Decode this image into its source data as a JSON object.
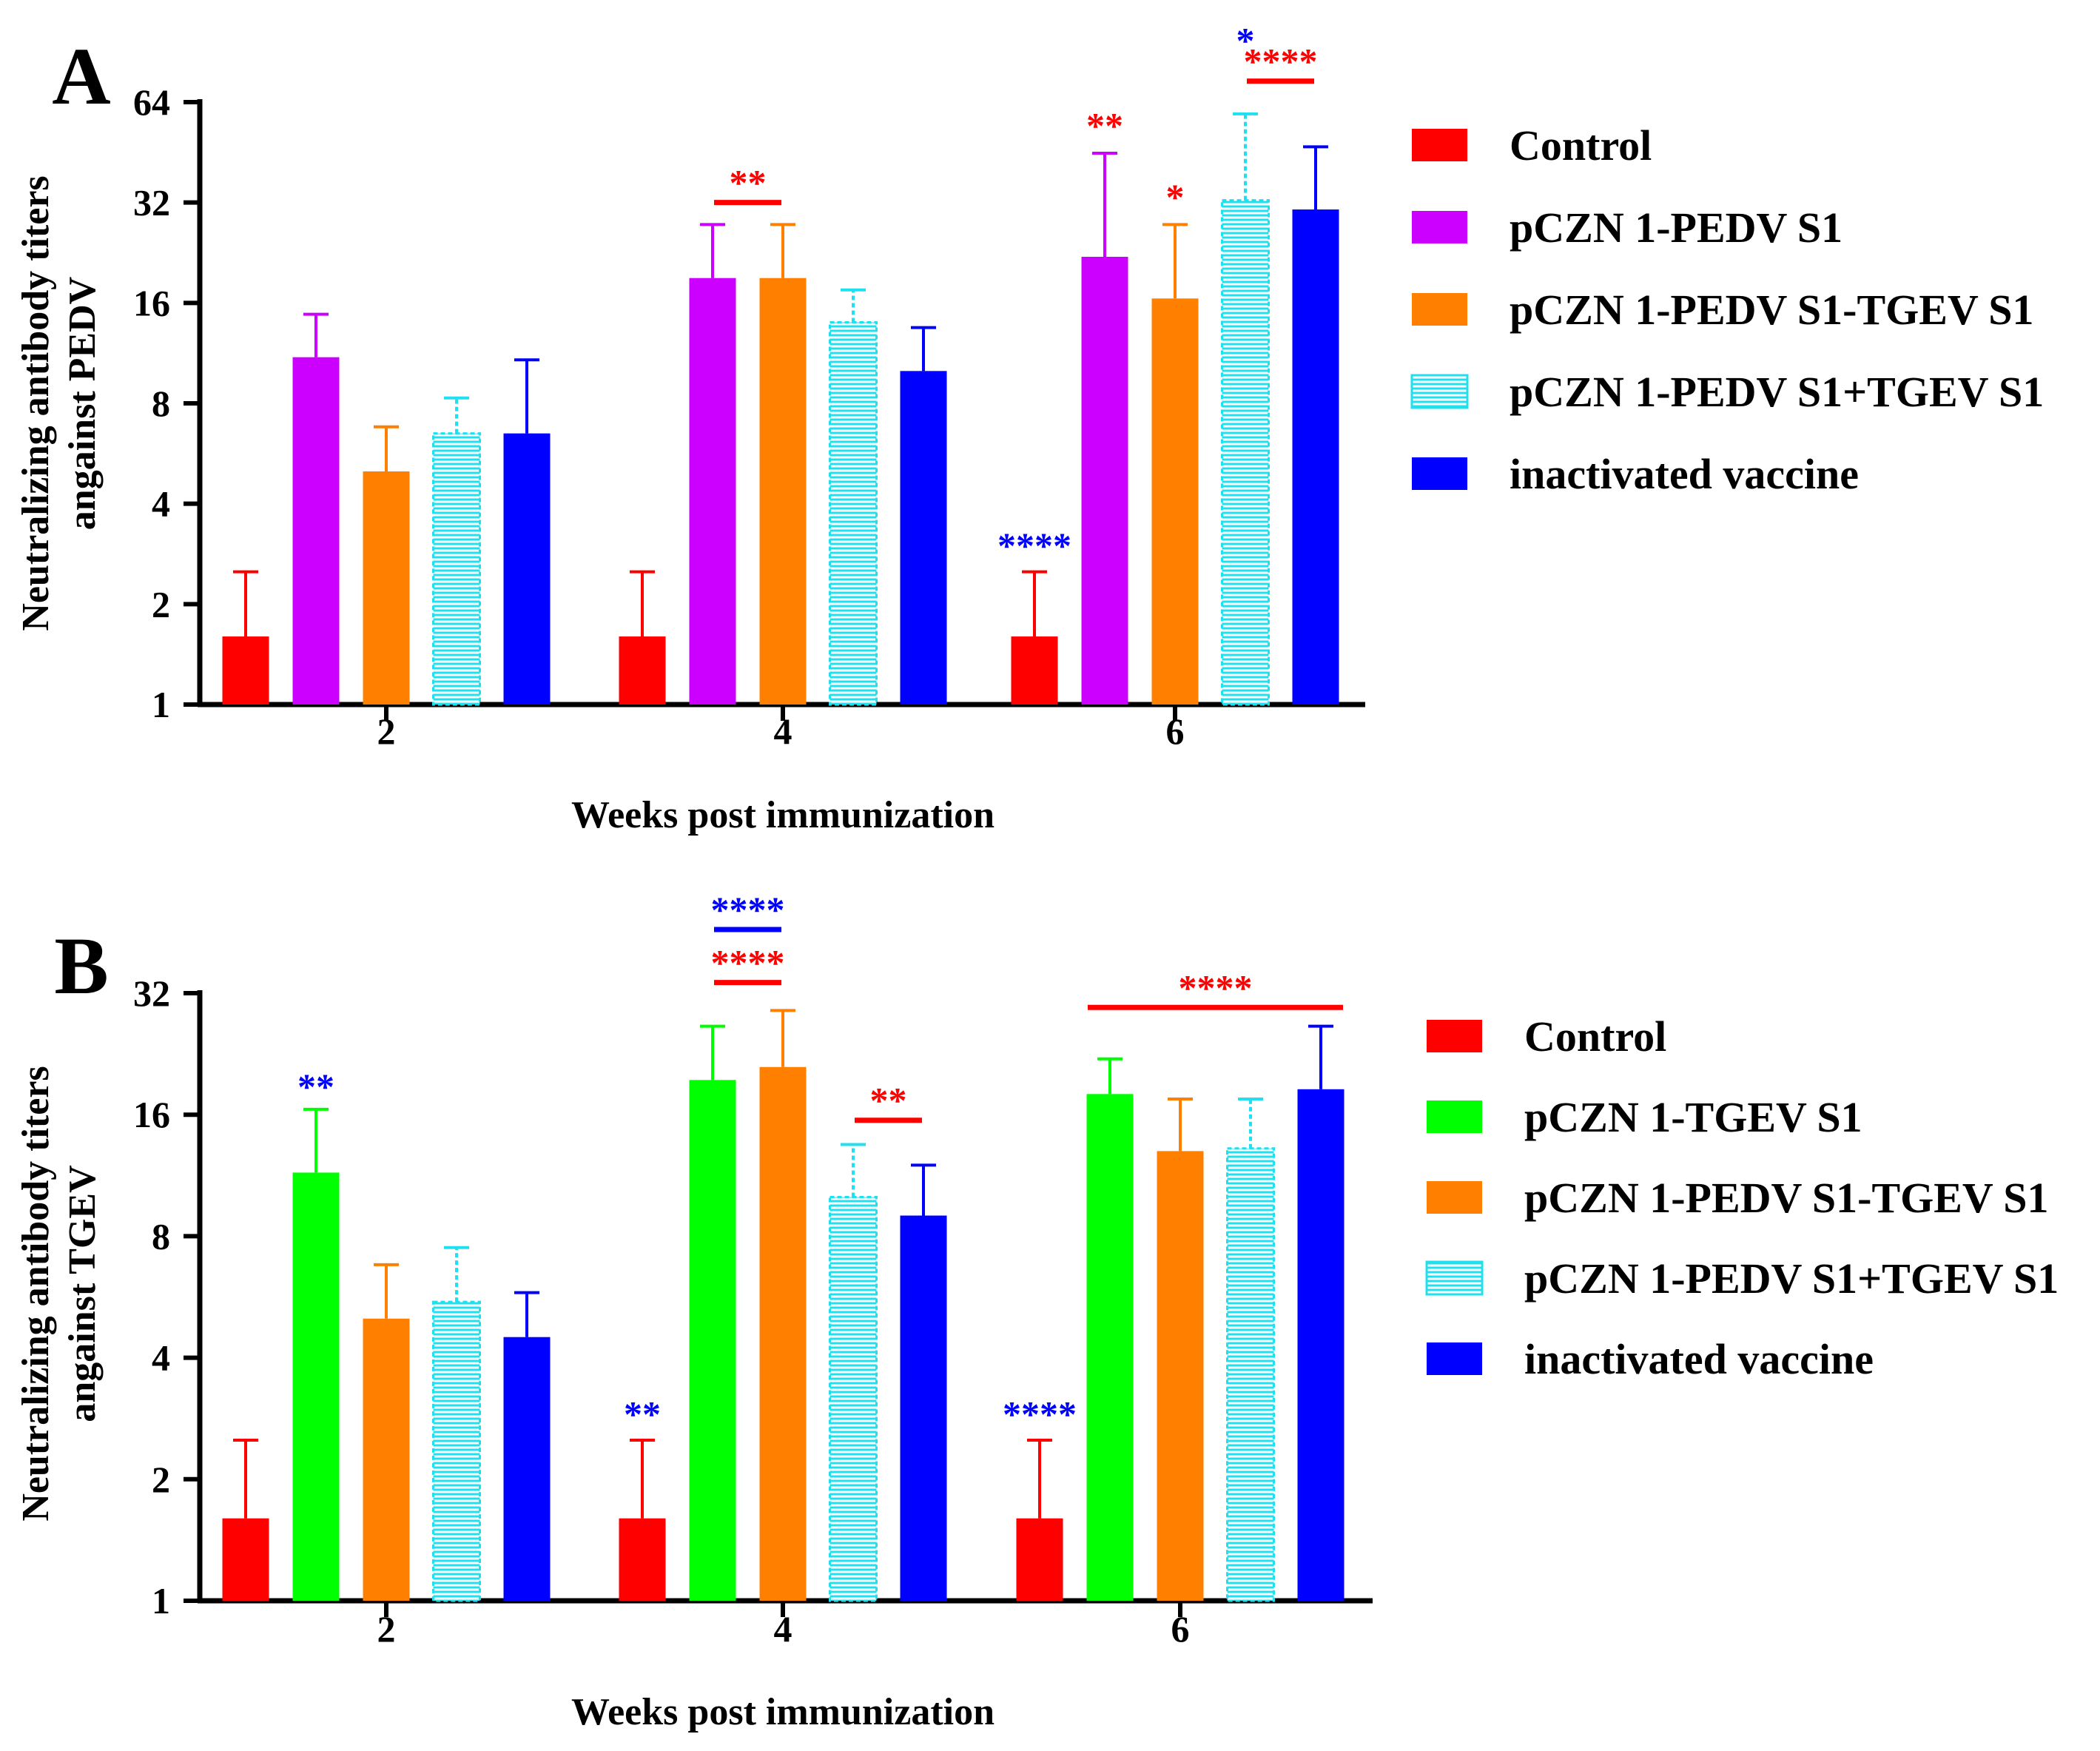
{
  "colors": {
    "control": "#ff0000",
    "pedv_s1": "#cc00ff",
    "tgev_s1": "#00ff00",
    "fusion": "#ff8000",
    "mix": "#20e0f0",
    "inactivated": "#0000ff",
    "sig_red": "#ff0000",
    "sig_blue": "#0000ff"
  },
  "chart_data": [
    {
      "panel": "A",
      "type": "bar",
      "scale": "log2",
      "xlabel": "Weeks post immunization",
      "ylabel_lines": [
        "Neutralizing antibody titers",
        "angainst PEDV"
      ],
      "ylim": [
        1,
        64
      ],
      "yticks": [
        "1",
        "2",
        "4",
        "8",
        "16",
        "32",
        "64"
      ],
      "ytick_values": [
        1,
        2,
        4,
        8,
        16,
        32,
        64
      ],
      "categories": [
        "2",
        "4",
        "6"
      ],
      "legend": {
        "position": "right",
        "entries": [
          "Control",
          "pCZN 1-PEDV S1",
          "pCZN 1-PEDV S1-TGEV S1",
          "pCZN 1-PEDV S1+TGEV S1",
          " inactivated vaccine"
        ]
      },
      "series": [
        {
          "name": "Control",
          "color_key": "control",
          "pattern": false,
          "values": [
            1.6,
            1.6,
            1.6
          ],
          "errors": [
            2.5,
            2.5,
            2.5
          ]
        },
        {
          "name": "pCZN 1-PEDV S1",
          "color_key": "pedv_s1",
          "pattern": false,
          "values": [
            11,
            19,
            22
          ],
          "errors": [
            14.8,
            27.5,
            45
          ]
        },
        {
          "name": "pCZN 1-PEDV S1-TGEV S1",
          "color_key": "fusion",
          "pattern": false,
          "values": [
            5,
            19,
            16.5
          ],
          "errors": [
            6.8,
            27.5,
            27.5
          ]
        },
        {
          "name": "pCZN 1-PEDV S1+TGEV S1",
          "color_key": "mix",
          "pattern": true,
          "values": [
            6.5,
            14,
            32.5
          ],
          "errors": [
            8.3,
            17.5,
            59
          ]
        },
        {
          "name": "inactivated vaccine",
          "color_key": "inactivated",
          "pattern": false,
          "values": [
            6.5,
            10,
            30.5
          ],
          "errors": [
            10.8,
            13.5,
            47
          ]
        }
      ],
      "annotations": [
        {
          "text": "**",
          "color_key": "sig_red",
          "x_group": 1,
          "from_series": 1,
          "to_series": 2,
          "y": 32,
          "bracket": true
        },
        {
          "text": "****",
          "color_key": "sig_blue",
          "x_group": 2,
          "series": 0,
          "y": 2.75,
          "bracket": false
        },
        {
          "text": "**",
          "color_key": "sig_red",
          "x_group": 2,
          "series": 1,
          "y": 50,
          "bracket": false
        },
        {
          "text": "*",
          "color_key": "sig_red",
          "x_group": 2,
          "series": 2,
          "y": 30.5,
          "bracket": false
        },
        {
          "text": "****",
          "color_key": "sig_red",
          "x_group": 2,
          "from_series": 3,
          "to_series": 4,
          "y": 74,
          "bracket": true
        },
        {
          "text": "*",
          "color_key": "sig_blue",
          "x_group": 2,
          "series": 3,
          "y": 90,
          "bracket": false
        }
      ]
    },
    {
      "panel": "B",
      "type": "bar",
      "scale": "log2",
      "xlabel": "Weeks post immunization",
      "ylabel_lines": [
        "Neutralizing antibody titers",
        "angainst TGEV"
      ],
      "ylim": [
        1,
        32
      ],
      "yticks": [
        "1",
        "2",
        "4",
        "8",
        "16",
        "32"
      ],
      "ytick_values": [
        1,
        2,
        4,
        8,
        16,
        32
      ],
      "categories": [
        "2",
        "4",
        "6"
      ],
      "legend": {
        "position": "right",
        "entries": [
          "Control",
          "pCZN 1-TGEV S1",
          "pCZN 1-PEDV S1-TGEV S1",
          "pCZN 1-PEDV S1+TGEV S1",
          "inactivated vaccine"
        ]
      },
      "series": [
        {
          "name": "Control",
          "color_key": "control",
          "pattern": false,
          "values": [
            1.6,
            1.6,
            1.6
          ],
          "errors": [
            2.5,
            2.5,
            2.5
          ]
        },
        {
          "name": "pCZN 1-TGEV S1",
          "color_key": "tgev_s1",
          "pattern": false,
          "values": [
            11.5,
            19.5,
            18
          ],
          "errors": [
            16.5,
            26.5,
            22
          ]
        },
        {
          "name": "pCZN 1-PEDV S1-TGEV S1",
          "color_key": "fusion",
          "pattern": false,
          "values": [
            5,
            21,
            13
          ],
          "errors": [
            6.8,
            29,
            17.5
          ]
        },
        {
          "name": "pCZN 1-PEDV S1+TGEV S1",
          "color_key": "mix",
          "pattern": true,
          "values": [
            5.5,
            10,
            13.2
          ],
          "errors": [
            7.5,
            13.5,
            17.5
          ]
        },
        {
          "name": "inactivated vaccine",
          "color_key": "inactivated",
          "pattern": false,
          "values": [
            4.5,
            9,
            18.5
          ],
          "errors": [
            5.8,
            12,
            26.5
          ]
        }
      ],
      "annotations": [
        {
          "text": "**",
          "color_key": "sig_blue",
          "x_group": 0,
          "series": 1,
          "y": 17.5,
          "bracket": false
        },
        {
          "text": "****",
          "color_key": "sig_red",
          "x_group": 1,
          "from_series": 1,
          "to_series": 2,
          "y": 34,
          "bracket": true
        },
        {
          "text": "****",
          "color_key": "sig_blue",
          "x_group": 1,
          "from_series": 1,
          "to_series": 2,
          "y": 46,
          "bracket": true
        },
        {
          "text": "**",
          "color_key": "sig_blue",
          "x_group": 1,
          "series": 0,
          "y": 2.7,
          "bracket": false
        },
        {
          "text": "**",
          "color_key": "sig_red",
          "x_group": 1,
          "from_series": 3,
          "to_series": 4,
          "y": 15.5,
          "bracket": true
        },
        {
          "text": "****",
          "color_key": "sig_blue",
          "x_group": 2,
          "series": 0,
          "y": 2.7,
          "bracket": false
        },
        {
          "text": "****",
          "color_key": "sig_red",
          "x_group": 2,
          "from_series": 1,
          "to_series": 4,
          "y": 29.5,
          "bracket": true
        }
      ]
    }
  ]
}
